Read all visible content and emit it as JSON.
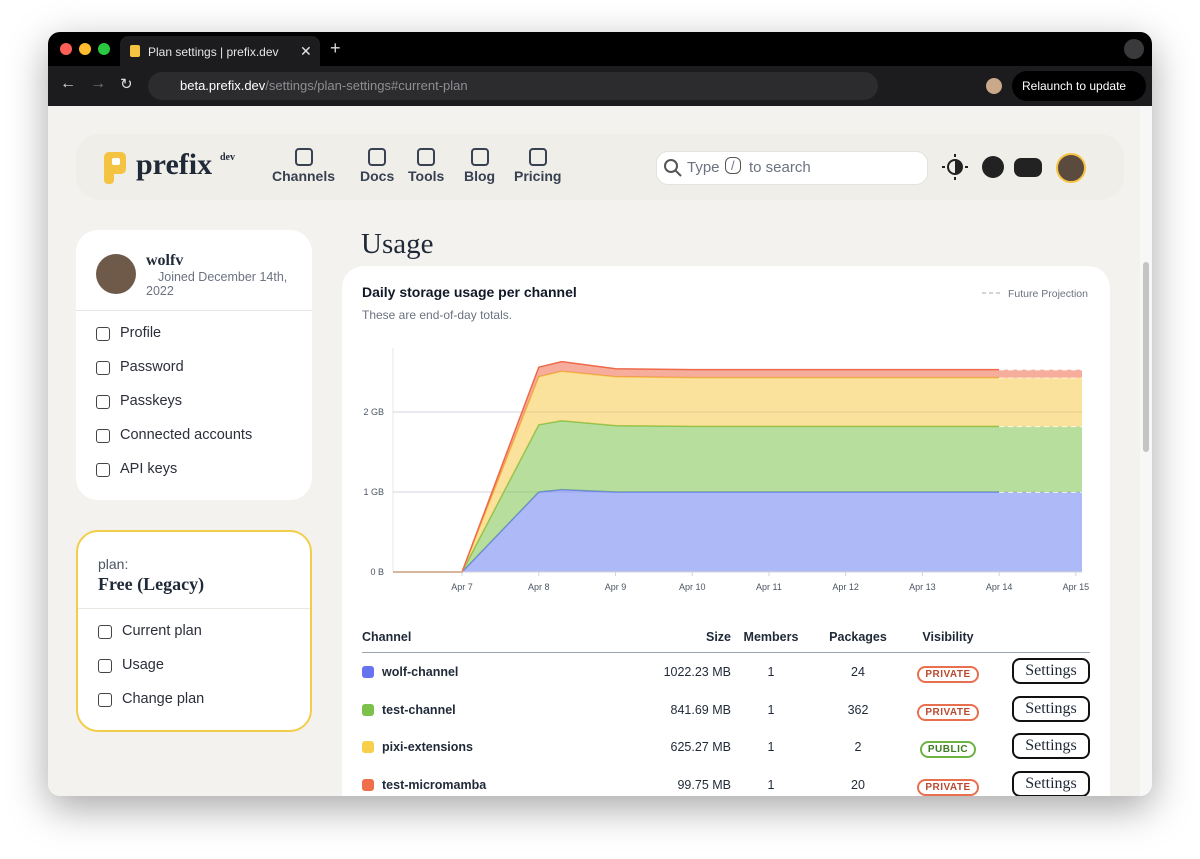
{
  "browser": {
    "tab_title": "Plan settings | prefix.dev",
    "url_host": "beta.prefix.dev",
    "url_path": "/settings/plan-settings#current-plan",
    "relaunch": "Relaunch to update"
  },
  "header": {
    "logo": "prefix",
    "logo_sup": "dev",
    "nav": [
      "Channels",
      "Docs",
      "Tools",
      "Blog",
      "Pricing"
    ],
    "search_prefix": "Type",
    "search_key": "/",
    "search_suffix": "to search"
  },
  "profile": {
    "name": "wolfv",
    "joined": "Joined December 14th, 2022",
    "menu": [
      "Profile",
      "Password",
      "Passkeys",
      "Connected accounts",
      "API keys"
    ]
  },
  "plan": {
    "label": "plan:",
    "name": "Free (Legacy)",
    "menu": [
      "Current plan",
      "Usage",
      "Change plan"
    ]
  },
  "page_title": "Usage",
  "chart_data": {
    "type": "stacked-area",
    "title": "Daily storage usage per channel",
    "subtitle": "These are end-of-day totals.",
    "legend_label": "Future Projection",
    "projection_start": 14,
    "x": [
      6.1,
      7,
      8,
      8.3,
      9,
      10,
      11,
      12,
      13,
      14,
      15.08
    ],
    "xlim": [
      6.1,
      15.08
    ],
    "xticks": [
      {
        "value": 7,
        "label": "Apr 7"
      },
      {
        "value": 8,
        "label": "Apr 8"
      },
      {
        "value": 9,
        "label": "Apr 9"
      },
      {
        "value": 10,
        "label": "Apr 10"
      },
      {
        "value": 11,
        "label": "Apr 11"
      },
      {
        "value": 12,
        "label": "Apr 12"
      },
      {
        "value": 13,
        "label": "Apr 13"
      },
      {
        "value": 14,
        "label": "Apr 14"
      },
      {
        "value": 15,
        "label": "Apr 15"
      }
    ],
    "ylim": [
      0,
      2.8
    ],
    "yticks": [
      {
        "value": 0,
        "label": "0 B"
      },
      {
        "value": 1,
        "label": "1 GB"
      },
      {
        "value": 2,
        "label": "2 GB"
      }
    ],
    "grid": true,
    "series": [
      {
        "color": "#6b7ff0",
        "values": [
          0,
          0,
          1.0,
          1.03,
          1.0,
          1.0,
          1.0,
          1.0,
          1.0,
          1.0,
          1.0
        ]
      },
      {
        "color": "#7cc24a",
        "values": [
          0,
          0,
          0.84,
          0.86,
          0.83,
          0.82,
          0.82,
          0.82,
          0.82,
          0.82,
          0.82
        ]
      },
      {
        "color": "#f5c84a",
        "values": [
          0,
          0,
          0.6,
          0.62,
          0.61,
          0.61,
          0.61,
          0.61,
          0.61,
          0.61,
          0.61
        ]
      },
      {
        "color": "#ee6a4a",
        "values": [
          0,
          0,
          0.12,
          0.12,
          0.1,
          0.1,
          0.1,
          0.1,
          0.1,
          0.1,
          0.1
        ]
      }
    ]
  },
  "table": {
    "columns": [
      "Channel",
      "Size",
      "Members",
      "Packages",
      "Visibility"
    ],
    "rows": [
      {
        "color": "#6674f0",
        "channel": "wolf-channel",
        "size": "1022.23 MB",
        "members": 1,
        "packages": 24,
        "visibility": "PRIVATE",
        "action": "Settings"
      },
      {
        "color": "#7cc24a",
        "channel": "test-channel",
        "size": "841.69 MB",
        "members": 1,
        "packages": 362,
        "visibility": "PRIVATE",
        "action": "Settings"
      },
      {
        "color": "#f8cf4a",
        "channel": "pixi-extensions",
        "size": "625.27 MB",
        "members": 1,
        "packages": 2,
        "visibility": "PUBLIC",
        "action": "Settings"
      },
      {
        "color": "#ee6f4a",
        "channel": "test-micromamba",
        "size": "99.75 MB",
        "members": 1,
        "packages": 20,
        "visibility": "PRIVATE",
        "action": "Settings"
      }
    ]
  }
}
